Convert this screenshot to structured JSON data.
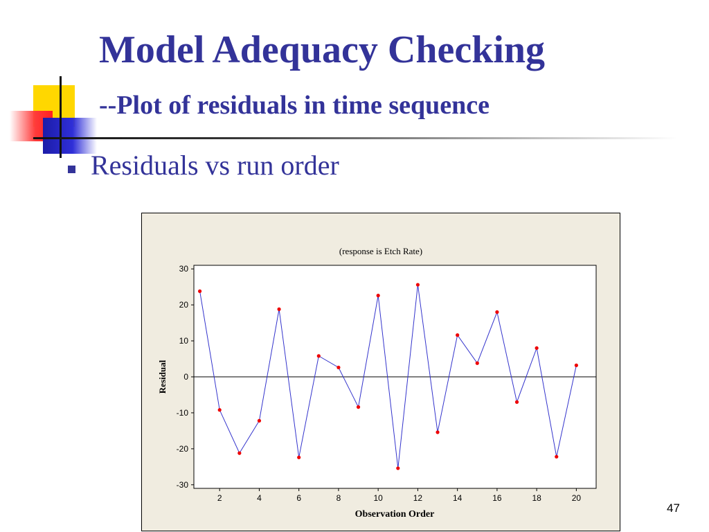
{
  "slide": {
    "title": "Model Adequacy Checking",
    "subtitle_dash": "--",
    "subtitle_text": "Plot of residuals in time sequence",
    "bullet": "Residuals vs run order",
    "slide_number": "47"
  },
  "colors": {
    "title": "#333399",
    "chart_panel_background": "#f0ece0",
    "series_line": "#3333cc",
    "series_marker": "#ee0000"
  },
  "chart_data": {
    "type": "line",
    "title": "(response is Etch Rate)",
    "xlabel": "Observation Order",
    "ylabel": "Residual",
    "x": [
      1,
      2,
      3,
      4,
      5,
      6,
      7,
      8,
      9,
      10,
      11,
      12,
      13,
      14,
      15,
      16,
      17,
      18,
      19,
      20
    ],
    "series": [
      {
        "values": [
          23.8,
          -9.2,
          -21.2,
          -12.2,
          18.8,
          -22.4,
          5.8,
          2.6,
          -8.4,
          22.6,
          -25.4,
          25.6,
          -15.4,
          11.6,
          3.8,
          18.0,
          -7.0,
          8.0,
          -22.2,
          3.2
        ]
      }
    ],
    "xlim": [
      0.7,
      21
    ],
    "ylim": [
      -31,
      31
    ],
    "xticks": [
      2,
      4,
      6,
      8,
      10,
      12,
      14,
      16,
      18,
      20
    ],
    "yticks": [
      30,
      20,
      10,
      0,
      -10,
      -20,
      -30
    ],
    "reference_line_y": 0,
    "grid": false,
    "legend": "none"
  }
}
